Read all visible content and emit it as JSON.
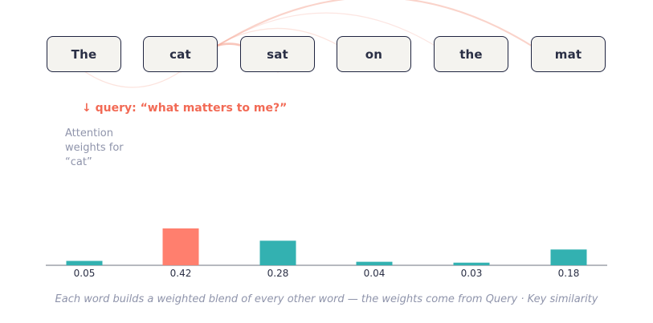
{
  "tokens": [
    "The",
    "cat",
    "sat",
    "on",
    "the",
    "mat"
  ],
  "query_label": "↓ query: “what matters to me?”",
  "attention_label": "Attention weights for “cat”",
  "caption": "Each word builds a weighted blend of every other word — the weights come from Query · Key similarity",
  "colors": {
    "highlight": "#ff7f6e",
    "bar": "#33b1b1",
    "arc": "#f5a796",
    "border": "#1f2440",
    "muted": "#8f94ab"
  },
  "chart_data": {
    "type": "bar",
    "categories": [
      "The",
      "cat",
      "sat",
      "on",
      "the",
      "mat"
    ],
    "values": [
      0.05,
      0.42,
      0.28,
      0.04,
      0.03,
      0.18
    ],
    "value_labels": [
      "0.05",
      "0.42",
      "0.28",
      "0.04",
      "0.03",
      "0.18"
    ],
    "highlight_index": 1,
    "query_index": 1
  }
}
